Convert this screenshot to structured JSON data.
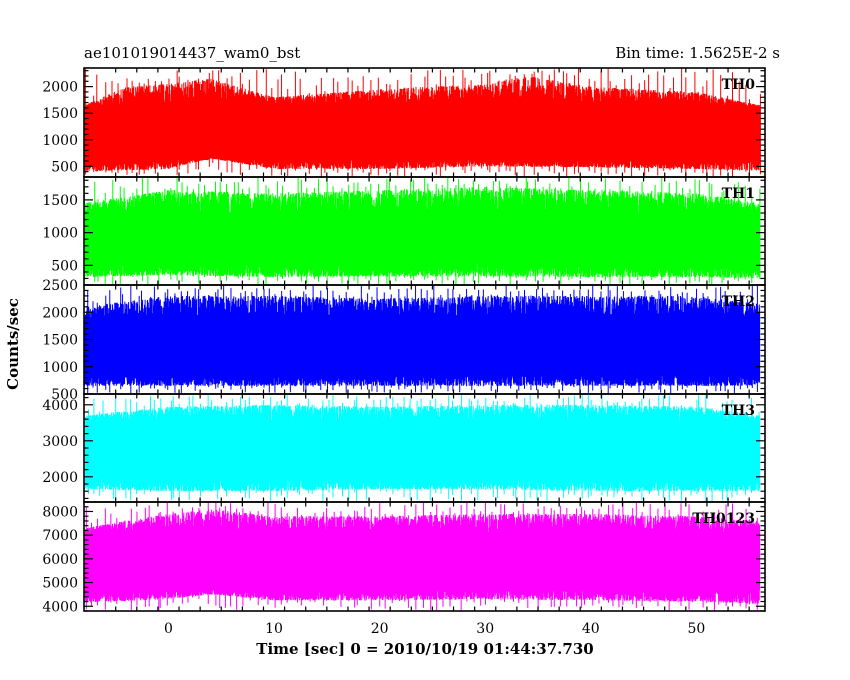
{
  "chart_data": {
    "type": "line",
    "title_left": "ae101019014437_wam0_bst",
    "title_right": "Bin time: 1.5625E-2 s",
    "xlabel": "Time [sec] 0 = 2010/10/19 01:44:37.730",
    "ylabel": "Counts/sec",
    "xlim": [
      -8,
      56.5
    ],
    "x_ticks": [
      0,
      10,
      20,
      30,
      40,
      50
    ],
    "x_tick_labels": [
      "0",
      "10",
      "20",
      "30",
      "40",
      "50"
    ],
    "data_range": [
      -8,
      56
    ],
    "grid": false,
    "panels": [
      {
        "label": "TH0",
        "color": "#ff0000",
        "ylim": [
          300,
          2350
        ],
        "y_ticks": [
          500,
          1000,
          1500,
          2000
        ],
        "y_tick_labels": [
          "500",
          "1000",
          "1500",
          "2000"
        ],
        "series_min": [
          300,
          650
        ],
        "series_max": [
          1600,
          2350
        ],
        "envelope_min": [
          [
            -8,
            400
          ],
          [
            0,
            450
          ],
          [
            4,
            650
          ],
          [
            10,
            450
          ],
          [
            20,
            450
          ],
          [
            30,
            500
          ],
          [
            40,
            480
          ],
          [
            50,
            450
          ],
          [
            56,
            420
          ]
        ],
        "envelope_max": [
          [
            -8,
            1650
          ],
          [
            -4,
            2000
          ],
          [
            0,
            2050
          ],
          [
            4,
            2150
          ],
          [
            10,
            1800
          ],
          [
            20,
            1950
          ],
          [
            30,
            2050
          ],
          [
            34,
            2200
          ],
          [
            40,
            2000
          ],
          [
            50,
            1900
          ],
          [
            56,
            1650
          ]
        ]
      },
      {
        "label": "TH1",
        "color": "#00ff00",
        "ylim": [
          200,
          1850
        ],
        "y_ticks": [
          500,
          1000,
          1500
        ],
        "y_tick_labels": [
          "500",
          "1000",
          "1500"
        ],
        "series_min": [
          250,
          550
        ],
        "series_max": [
          1250,
          1850
        ],
        "envelope_min": [
          [
            -8,
            320
          ],
          [
            0,
            350
          ],
          [
            10,
            320
          ],
          [
            20,
            330
          ],
          [
            30,
            330
          ],
          [
            40,
            320
          ],
          [
            50,
            320
          ],
          [
            56,
            300
          ]
        ],
        "envelope_max": [
          [
            -8,
            1450
          ],
          [
            0,
            1650
          ],
          [
            10,
            1600
          ],
          [
            20,
            1650
          ],
          [
            30,
            1700
          ],
          [
            40,
            1650
          ],
          [
            50,
            1600
          ],
          [
            56,
            1450
          ]
        ]
      },
      {
        "label": "TH2",
        "color": "#0000ff",
        "ylim": [
          500,
          2500
        ],
        "y_ticks": [
          500,
          1000,
          1500,
          2000,
          2500
        ],
        "y_tick_labels": [
          "500",
          "1000",
          "1500",
          "2000",
          "2500"
        ],
        "series_min": [
          500,
          900
        ],
        "series_max": [
          1800,
          2500
        ],
        "envelope_min": [
          [
            -8,
            650
          ],
          [
            0,
            650
          ],
          [
            10,
            650
          ],
          [
            20,
            650
          ],
          [
            30,
            650
          ],
          [
            40,
            650
          ],
          [
            50,
            650
          ],
          [
            56,
            650
          ]
        ],
        "envelope_max": [
          [
            -8,
            2100
          ],
          [
            0,
            2300
          ],
          [
            10,
            2300
          ],
          [
            20,
            2250
          ],
          [
            30,
            2300
          ],
          [
            40,
            2300
          ],
          [
            50,
            2300
          ],
          [
            56,
            2150
          ]
        ]
      },
      {
        "label": "TH3",
        "color": "#00ffff",
        "ylim": [
          1300,
          4300
        ],
        "y_ticks": [
          2000,
          3000,
          4000
        ],
        "y_tick_labels": [
          "2000",
          "3000",
          "4000"
        ],
        "series_min": [
          1300,
          2000
        ],
        "series_max": [
          3500,
          4300
        ],
        "envelope_min": [
          [
            -8,
            1650
          ],
          [
            0,
            1600
          ],
          [
            10,
            1600
          ],
          [
            20,
            1650
          ],
          [
            30,
            1650
          ],
          [
            40,
            1600
          ],
          [
            50,
            1600
          ],
          [
            56,
            1600
          ]
        ],
        "envelope_max": [
          [
            -8,
            3700
          ],
          [
            0,
            3950
          ],
          [
            10,
            4000
          ],
          [
            20,
            3950
          ],
          [
            30,
            4000
          ],
          [
            40,
            4000
          ],
          [
            50,
            3950
          ],
          [
            56,
            3700
          ]
        ]
      },
      {
        "label": "TH0123",
        "color": "#ff00ff",
        "ylim": [
          3800,
          8400
        ],
        "y_ticks": [
          4000,
          5000,
          6000,
          7000,
          8000
        ],
        "y_tick_labels": [
          "4000",
          "5000",
          "6000",
          "7000",
          "8000"
        ],
        "series_min": [
          3800,
          4800
        ],
        "series_max": [
          7000,
          8400
        ],
        "envelope_min": [
          [
            -8,
            4150
          ],
          [
            0,
            4300
          ],
          [
            4,
            4500
          ],
          [
            10,
            4250
          ],
          [
            20,
            4250
          ],
          [
            30,
            4300
          ],
          [
            40,
            4250
          ],
          [
            50,
            4200
          ],
          [
            56,
            4100
          ]
        ],
        "envelope_max": [
          [
            -8,
            7300
          ],
          [
            0,
            7900
          ],
          [
            4,
            8100
          ],
          [
            10,
            7800
          ],
          [
            20,
            7800
          ],
          [
            30,
            7900
          ],
          [
            40,
            7900
          ],
          [
            50,
            7800
          ],
          [
            56,
            7600
          ]
        ]
      }
    ]
  }
}
